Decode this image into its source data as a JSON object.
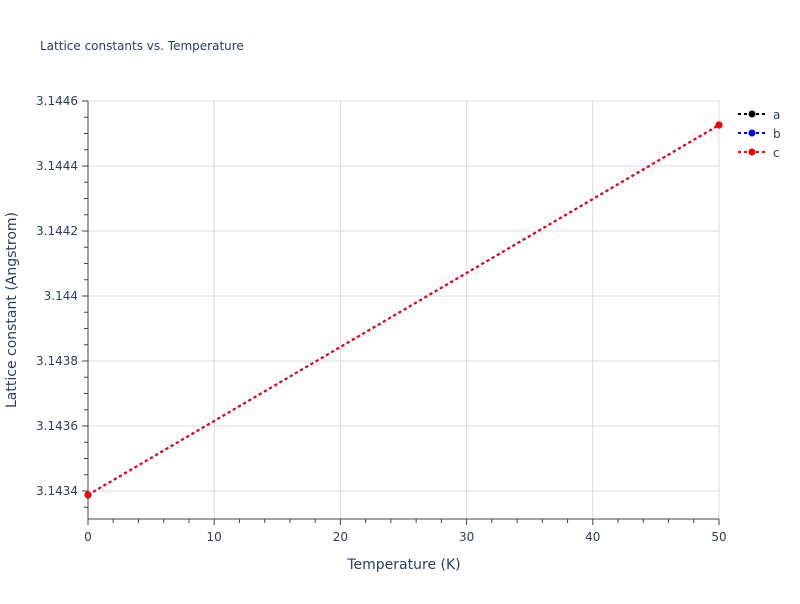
{
  "chart_data": {
    "type": "line",
    "title": "Lattice constants vs. Temperature",
    "xlabel": "Temperature (K)",
    "ylabel": "Lattice constant (Angstrom)",
    "xlim": [
      0,
      50
    ],
    "ylim": [
      3.14331,
      3.14461
    ],
    "xticks": [
      0,
      10,
      20,
      30,
      40,
      50
    ],
    "xtick_labels": [
      "0",
      "10",
      "20",
      "30",
      "40",
      "50"
    ],
    "yticks": [
      3.1434,
      3.1436,
      3.1438,
      3.144,
      3.1442,
      3.1444,
      3.1446
    ],
    "ytick_labels": [
      "3.1434",
      "3.1436",
      "3.1438",
      "3.144",
      "3.1442",
      "3.1444",
      "3.1446"
    ],
    "grid": true,
    "legend_position": "top-right",
    "x": [
      0,
      50
    ],
    "series": [
      {
        "name": "a",
        "color": "#000000",
        "values": [
          3.143388,
          3.144526
        ]
      },
      {
        "name": "b",
        "color": "#0000ff",
        "values": [
          3.143388,
          3.144526
        ]
      },
      {
        "name": "c",
        "color": "#ff0000",
        "values": [
          3.143388,
          3.144526
        ]
      }
    ]
  }
}
